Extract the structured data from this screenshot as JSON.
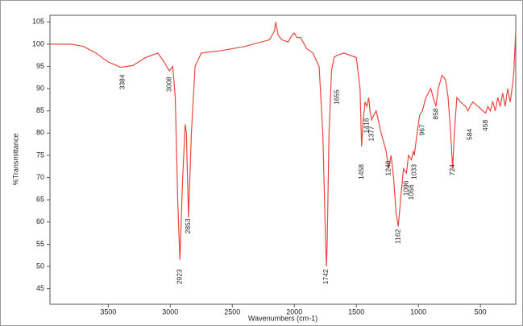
{
  "chart_data": {
    "type": "line",
    "xlabel": "Wavenumbers (cm-1)",
    "ylabel": "%Transmittance",
    "xlim": [
      3970,
      215
    ],
    "ylim": [
      41.5,
      106.5
    ],
    "xticks": [
      3500,
      3000,
      2500,
      2000,
      1500,
      1000,
      500
    ],
    "yticks": [
      45,
      50,
      55,
      60,
      65,
      70,
      75,
      80,
      85,
      90,
      95,
      100,
      105
    ],
    "color": "#e8473f",
    "x": [
      3970,
      3800,
      3700,
      3600,
      3500,
      3400,
      3300,
      3200,
      3100,
      3050,
      3008,
      2980,
      2960,
      2940,
      2923,
      2900,
      2880,
      2870,
      2853,
      2830,
      2800,
      2750,
      2600,
      2400,
      2200,
      2160,
      2150,
      2130,
      2100,
      2050,
      2020,
      2000,
      1980,
      1950,
      1900,
      1850,
      1800,
      1770,
      1750,
      1742,
      1735,
      1720,
      1700,
      1680,
      1655,
      1600,
      1500,
      1470,
      1458,
      1445,
      1430,
      1416,
      1400,
      1390,
      1377,
      1360,
      1340,
      1300,
      1260,
      1240,
      1220,
      1200,
      1180,
      1162,
      1140,
      1120,
      1096,
      1080,
      1056,
      1040,
      1033,
      1010,
      990,
      967,
      940,
      900,
      880,
      858,
      840,
      810,
      780,
      760,
      740,
      724,
      710,
      690,
      660,
      620,
      600,
      584,
      560,
      520,
      480,
      458,
      440,
      420,
      400,
      380,
      360,
      340,
      320,
      300,
      280,
      260,
      240,
      230,
      220,
      215
    ],
    "y": [
      100,
      100,
      99.5,
      98,
      96,
      94.8,
      95.2,
      97,
      98,
      96,
      94,
      95,
      88,
      65,
      51.5,
      70,
      82,
      80,
      61,
      80,
      95,
      98,
      98.5,
      99.5,
      101,
      103,
      105,
      102,
      101,
      100.5,
      102,
      102.5,
      101.5,
      101.5,
      99,
      98,
      95,
      80,
      58,
      50,
      55,
      80,
      94,
      97,
      97.5,
      98,
      97,
      90,
      77,
      83,
      87,
      86,
      88,
      85,
      83,
      84,
      85,
      80,
      76,
      72,
      75,
      70,
      62,
      59,
      66,
      72,
      71,
      75,
      74,
      76,
      75,
      80,
      84,
      85,
      88,
      90,
      88,
      86,
      90,
      93,
      92,
      88,
      80,
      72,
      80,
      88,
      87,
      86,
      85,
      86,
      87,
      86,
      85,
      84.5,
      86,
      85,
      87,
      85,
      88,
      86,
      89,
      86,
      90,
      87,
      91,
      94,
      100,
      103
    ],
    "annotations": [
      {
        "label": "3384",
        "x": 3384,
        "y": 93.2
      },
      {
        "label": "3008",
        "x": 3008,
        "y": 92.7
      },
      {
        "label": "2923",
        "x": 2923,
        "y": 49.4
      },
      {
        "label": "2853",
        "x": 2853,
        "y": 60.8
      },
      {
        "label": "1742",
        "x": 1742,
        "y": 49.4
      },
      {
        "label": "1655",
        "x": 1655,
        "y": 89.8
      },
      {
        "label": "1458",
        "x": 1458,
        "y": 73
      },
      {
        "label": "1416",
        "x": 1416,
        "y": 83.4
      },
      {
        "label": "1377",
        "x": 1377,
        "y": 81.6
      },
      {
        "label": "1240",
        "x": 1240,
        "y": 73.8
      },
      {
        "label": "1162",
        "x": 1162,
        "y": 58.4
      },
      {
        "label": "1096",
        "x": 1096,
        "y": 69.3
      },
      {
        "label": "1056",
        "x": 1056,
        "y": 68.4
      },
      {
        "label": "1033",
        "x": 1033,
        "y": 73
      },
      {
        "label": "967",
        "x": 967,
        "y": 82
      },
      {
        "label": "858",
        "x": 858,
        "y": 85.6
      },
      {
        "label": "724",
        "x": 724,
        "y": 73
      },
      {
        "label": "584",
        "x": 584,
        "y": 81
      },
      {
        "label": "458",
        "x": 458,
        "y": 83
      }
    ]
  }
}
